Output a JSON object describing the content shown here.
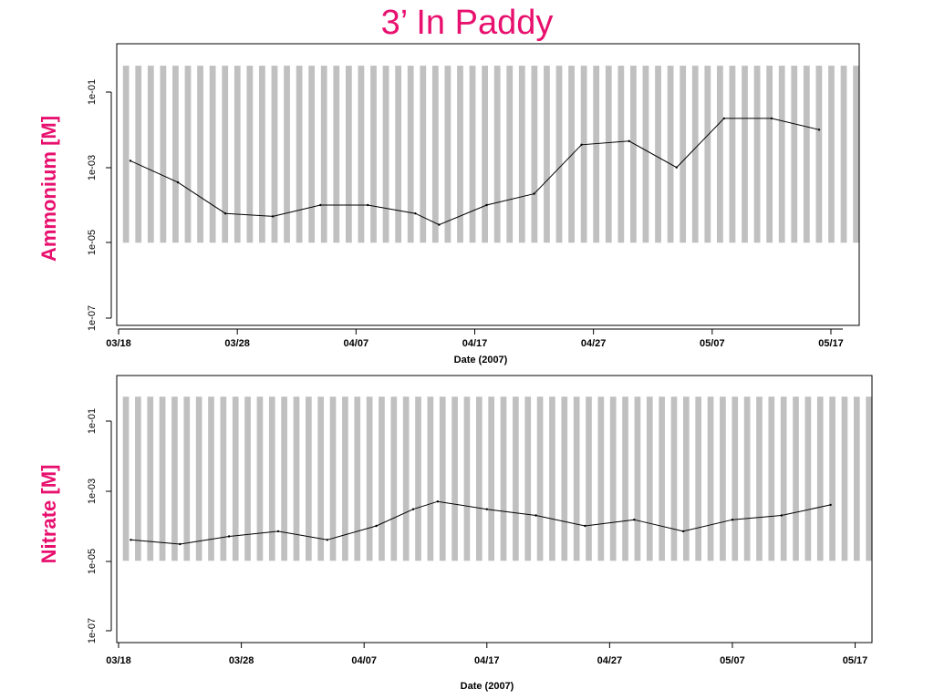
{
  "title": "3’ In Paddy",
  "colors": {
    "title": "#e8106e",
    "band": "#c0c0c0",
    "trace": "#000000"
  },
  "chart_data": [
    {
      "type": "line",
      "ylabel": "Ammonium [M]",
      "xlabel": "Date (2007)",
      "y_scale": "log",
      "ylim": [
        1e-07,
        1
      ],
      "y_ticks": [
        "1e-07",
        "1e-05",
        "1e-03",
        "1e-01"
      ],
      "y_tick_values": [
        1e-07,
        1e-05,
        0.001,
        0.1
      ],
      "xlim": [
        "2007-03-18",
        "2007-05-18"
      ],
      "x_ticks": [
        "03/18",
        "03/28",
        "04/07",
        "04/17",
        "04/27",
        "05/07",
        "05/17"
      ],
      "shaded_bands": {
        "count": 60,
        "y_range": [
          1e-05,
          0.5
        ]
      },
      "series": [
        {
          "x": [
            "2007-03-19",
            "2007-03-23",
            "2007-03-27",
            "2007-03-31",
            "2007-04-04",
            "2007-04-08",
            "2007-04-12",
            "2007-04-14",
            "2007-04-18",
            "2007-04-22",
            "2007-04-26",
            "2007-04-30",
            "2007-05-04",
            "2007-05-08",
            "2007-05-12",
            "2007-05-16"
          ],
          "y": [
            0.0015,
            0.0004,
            6e-05,
            5e-05,
            0.0001,
            0.0001,
            6e-05,
            3e-05,
            0.0001,
            0.0002,
            0.004,
            0.005,
            0.001,
            0.02,
            0.02,
            0.01
          ]
        }
      ]
    },
    {
      "type": "line",
      "ylabel": "Nitrate [M]",
      "xlabel": "Date (2007)",
      "y_scale": "log",
      "ylim": [
        1e-07,
        1
      ],
      "y_ticks": [
        "1e-07",
        "1e-05",
        "1e-03",
        "1e-01"
      ],
      "y_tick_values": [
        1e-07,
        1e-05,
        0.001,
        0.1
      ],
      "xlim": [
        "2007-03-18",
        "2007-05-18"
      ],
      "x_ticks": [
        "03/18",
        "03/28",
        "04/07",
        "04/17",
        "04/27",
        "05/07",
        "05/17"
      ],
      "shaded_bands": {
        "count": 62,
        "y_range": [
          1e-05,
          0.5
        ]
      },
      "series": [
        {
          "x": [
            "2007-03-19",
            "2007-03-23",
            "2007-03-27",
            "2007-03-31",
            "2007-04-04",
            "2007-04-08",
            "2007-04-11",
            "2007-04-13",
            "2007-04-17",
            "2007-04-21",
            "2007-04-25",
            "2007-04-29",
            "2007-05-03",
            "2007-05-07",
            "2007-05-11",
            "2007-05-15"
          ],
          "y": [
            4e-05,
            3e-05,
            5e-05,
            7e-05,
            4e-05,
            0.0001,
            0.0003,
            0.0005,
            0.0003,
            0.0002,
            0.0001,
            0.00015,
            7e-05,
            0.00015,
            0.0002,
            0.0004
          ]
        }
      ]
    }
  ]
}
